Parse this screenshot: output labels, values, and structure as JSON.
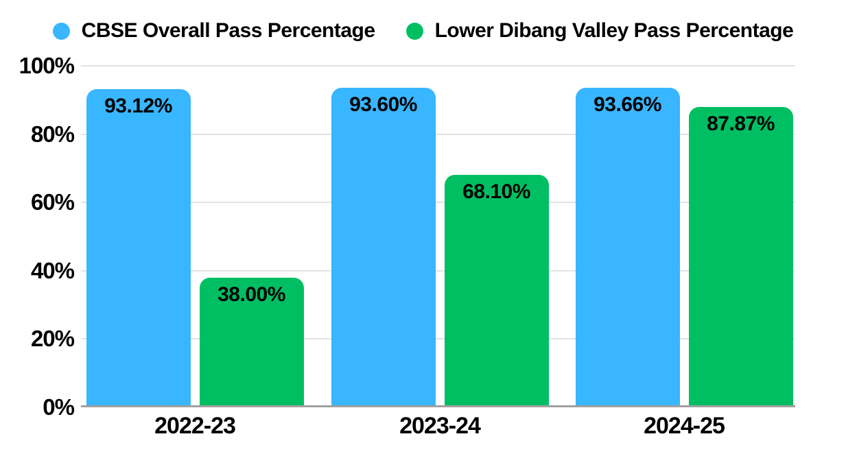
{
  "legend": [
    {
      "label": "CBSE Overall Pass Percentage",
      "color": "#38B6FF"
    },
    {
      "label": "Lower Dibang Valley Pass Percentage",
      "color": "#00BF63"
    }
  ],
  "chart_data": {
    "type": "bar",
    "title": "",
    "categories": [
      "2022-23",
      "2023-24",
      "2024-25"
    ],
    "series": [
      {
        "name": "CBSE Overall Pass Percentage",
        "color": "#38B6FF",
        "values": [
          93.12,
          93.6,
          93.66
        ],
        "value_labels": [
          "93.12%",
          "93.60%",
          "93.66%"
        ]
      },
      {
        "name": "Lower Dibang Valley Pass Percentage",
        "color": "#00BF63",
        "values": [
          38.0,
          68.1,
          87.87
        ],
        "value_labels": [
          "38.00%",
          "68.10%",
          "87.87%"
        ]
      }
    ],
    "xlabel": "",
    "ylabel": "",
    "ylim": [
      0,
      100
    ],
    "ytick_values": [
      0,
      20,
      40,
      60,
      80,
      100
    ],
    "ytick_labels": [
      "0%",
      "20%",
      "40%",
      "60%",
      "80%",
      "100%"
    ],
    "grid": true,
    "legend_position": "top"
  },
  "colors": {
    "background": "#ffffff",
    "bar_blue": "#38B6FF",
    "bar_green": "#00BF63",
    "gridline": "#e2e2e2",
    "axis_line": "#a0a0a0",
    "text": "#000000"
  }
}
